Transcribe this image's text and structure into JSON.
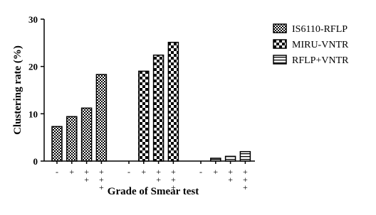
{
  "chart_data": {
    "type": "grouped-bar",
    "x_label": "Grade of Smear test",
    "y_label": "Clustering rate (%)",
    "categories": [
      "-",
      "+",
      "++",
      "+++"
    ],
    "series": [
      {
        "name": "IS6110-RFLP",
        "color": "#000000",
        "pattern": "fine-checker",
        "values": [
          7.3,
          9.4,
          11.2,
          18.3
        ]
      },
      {
        "name": "MIRU-VNTR",
        "color": "#000000",
        "pattern": "checker",
        "values": [
          null,
          19,
          22.4,
          25.1
        ]
      },
      {
        "name": "RFLP+VNTR",
        "color": "#000000",
        "pattern": "horizontal-lines",
        "values": [
          null,
          0.6,
          1,
          2
        ]
      }
    ],
    "ylim": [
      0,
      30
    ],
    "yticks": [
      0,
      10,
      20,
      30
    ],
    "legend": "right"
  }
}
